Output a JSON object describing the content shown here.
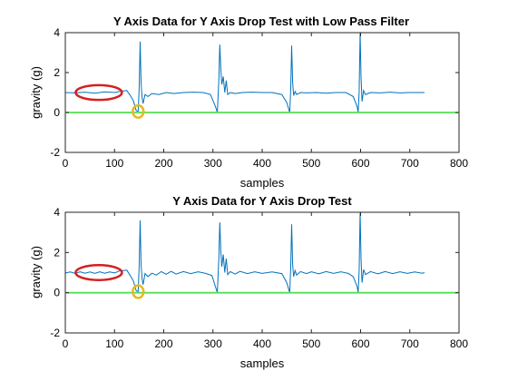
{
  "chart_data": [
    {
      "type": "line",
      "title": "Y Axis Data for Y Axis Drop Test with Low Pass Filter",
      "xlabel": "samples",
      "ylabel": "gravity (g)",
      "xlim": [
        0,
        800
      ],
      "ylim": [
        -2,
        4
      ],
      "xticks": [
        "0",
        "100",
        "200",
        "300",
        "400",
        "500",
        "600",
        "700",
        "800"
      ],
      "yticks": [
        "-2",
        "0",
        "2",
        "4"
      ],
      "grid": false,
      "series": [
        {
          "color": "#0072bd",
          "x": [
            1,
            20,
            40,
            60,
            80,
            100,
            110,
            125,
            132,
            138,
            144,
            148,
            150,
            152,
            154,
            156,
            158,
            162,
            168,
            176,
            190,
            205,
            220,
            240,
            260,
            280,
            295,
            305,
            309,
            312,
            314,
            316,
            318,
            321,
            324,
            327,
            330,
            335,
            345,
            360,
            380,
            400,
            420,
            440,
            450,
            456,
            458,
            460,
            462,
            464,
            467,
            470,
            478,
            490,
            510,
            530,
            550,
            570,
            585,
            593,
            595,
            597,
            599,
            601,
            603,
            606,
            610,
            620,
            640,
            660,
            680,
            700,
            720,
            730
          ],
          "y": [
            1.0,
            0.98,
            1.02,
            0.97,
            1.03,
            1.0,
            1.05,
            1.1,
            0.85,
            0.6,
            0.1,
            0.05,
            1.2,
            3.55,
            1.5,
            0.75,
            0.45,
            0.9,
            0.8,
            0.95,
            0.9,
            1.0,
            0.95,
            1.0,
            1.02,
            1.0,
            0.9,
            0.3,
            0.0,
            1.7,
            3.4,
            2.2,
            1.4,
            1.8,
            1.0,
            1.6,
            0.9,
            1.0,
            0.95,
            1.0,
            1.02,
            1.0,
            1.0,
            0.9,
            0.5,
            0.0,
            1.2,
            3.35,
            1.5,
            0.85,
            1.05,
            0.9,
            1.0,
            0.98,
            1.0,
            0.97,
            1.0,
            1.0,
            0.8,
            0.3,
            0.0,
            1.0,
            4.0,
            1.8,
            0.55,
            1.1,
            0.9,
            1.0,
            0.98,
            1.02,
            0.98,
            1.0,
            1.0,
            1.0
          ]
        },
        {
          "color": "#52e052",
          "x": [
            0,
            800
          ],
          "y": [
            0,
            0
          ]
        }
      ],
      "annotations": [
        {
          "shape": "ellipse",
          "color": "#d42020",
          "cx": 68,
          "cy": 1.0,
          "rx": 47,
          "ry": 0.37
        },
        {
          "shape": "circle",
          "color": "#e8b820",
          "cx": 148,
          "cy": 0.05,
          "rx": 11,
          "ry": 0.31
        }
      ]
    },
    {
      "type": "line",
      "title": "Y Axis Data for Y Axis Drop Test",
      "xlabel": "samples",
      "ylabel": "gravity (g)",
      "xlim": [
        0,
        800
      ],
      "ylim": [
        -2,
        4
      ],
      "xticks": [
        "0",
        "100",
        "200",
        "300",
        "400",
        "500",
        "600",
        "700",
        "800"
      ],
      "yticks": [
        "-2",
        "0",
        "2",
        "4"
      ],
      "grid": false,
      "series": [
        {
          "color": "#0072bd",
          "x": [
            1,
            10,
            20,
            30,
            40,
            50,
            60,
            70,
            80,
            90,
            100,
            110,
            125,
            132,
            138,
            144,
            148,
            150,
            152,
            154,
            156,
            158,
            162,
            168,
            176,
            185,
            195,
            205,
            215,
            225,
            240,
            255,
            270,
            285,
            298,
            305,
            309,
            312,
            314,
            316,
            318,
            321,
            324,
            327,
            330,
            335,
            345,
            355,
            370,
            385,
            400,
            420,
            440,
            450,
            456,
            458,
            460,
            462,
            464,
            467,
            470,
            478,
            490,
            500,
            515,
            530,
            545,
            560,
            575,
            585,
            593,
            595,
            597,
            599,
            601,
            603,
            606,
            610,
            620,
            635,
            650,
            665,
            680,
            695,
            710,
            725,
            730
          ],
          "y": [
            0.98,
            1.03,
            0.96,
            1.04,
            0.97,
            1.03,
            0.96,
            1.04,
            0.97,
            1.03,
            0.98,
            1.08,
            1.12,
            0.85,
            0.6,
            0.1,
            0.05,
            1.3,
            3.6,
            1.4,
            0.7,
            0.4,
            0.95,
            0.8,
            0.97,
            0.88,
            1.05,
            0.92,
            1.06,
            0.93,
            1.05,
            0.95,
            1.04,
            0.96,
            0.85,
            0.3,
            0.0,
            1.8,
            3.5,
            2.1,
            1.3,
            1.9,
            1.0,
            1.7,
            0.9,
            1.05,
            0.93,
            1.06,
            0.95,
            1.04,
            0.96,
            1.03,
            0.95,
            0.5,
            0.0,
            1.3,
            3.4,
            1.4,
            0.8,
            1.1,
            0.88,
            1.05,
            0.95,
            1.04,
            0.94,
            1.05,
            0.96,
            1.04,
            0.96,
            0.8,
            0.3,
            0.0,
            1.1,
            4.0,
            1.7,
            0.5,
            1.15,
            0.9,
            1.05,
            0.94,
            1.05,
            0.95,
            1.04,
            0.96,
            1.03,
            0.97,
            1.0
          ]
        },
        {
          "color": "#52e052",
          "x": [
            0,
            800
          ],
          "y": [
            0,
            0
          ]
        }
      ],
      "annotations": [
        {
          "shape": "ellipse",
          "color": "#d42020",
          "cx": 68,
          "cy": 1.0,
          "rx": 47,
          "ry": 0.37
        },
        {
          "shape": "circle",
          "color": "#e8b820",
          "cx": 148,
          "cy": 0.05,
          "rx": 11,
          "ry": 0.31
        }
      ]
    }
  ]
}
